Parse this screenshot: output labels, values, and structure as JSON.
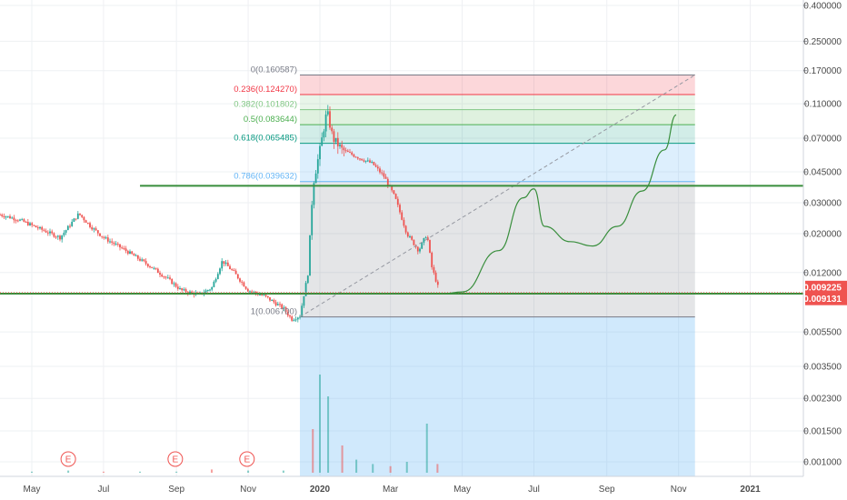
{
  "chart_data": {
    "type": "candlestick",
    "price_scale": "log",
    "grid": true,
    "y_ticks": [
      "0.400000",
      "0.250000",
      "0.170000",
      "0.110000",
      "0.070000",
      "0.045000",
      "0.030000",
      "0.020000",
      "0.012000",
      "0.009225",
      "0.009131",
      "0.005500",
      "0.003500",
      "0.002300",
      "0.001500",
      "0.001000"
    ],
    "y_tick_values": [
      0.4,
      0.25,
      0.17,
      0.11,
      0.07,
      0.045,
      0.03,
      0.02,
      0.012,
      0.0055,
      0.0035,
      0.0023,
      0.0015,
      0.001
    ],
    "x_ticks": [
      "May",
      "Jul",
      "Sep",
      "Nov",
      "2020",
      "Mar",
      "May",
      "Jul",
      "Sep",
      "Nov",
      "2021"
    ],
    "x_tick_dates": [
      "2019-05-01",
      "2019-07-01",
      "2019-09-01",
      "2019-11-01",
      "2020-01-01",
      "2020-03-01",
      "2020-05-01",
      "2020-07-01",
      "2020-09-01",
      "2020-11-01",
      "2021-01-01"
    ],
    "price_badges": [
      {
        "label": "0.009225",
        "value": 0.009225,
        "color": "#ef5350"
      },
      {
        "label": "0.009131",
        "value": 0.009131,
        "color": "#ef5350"
      }
    ],
    "earnings_markers": [
      {
        "label": "E",
        "date": "2019-06-01"
      },
      {
        "label": "E",
        "date": "2019-08-31"
      },
      {
        "label": "E",
        "date": "2019-10-31"
      }
    ],
    "fibonacci": {
      "start": {
        "date": "2019-12-15",
        "price": 0.0067
      },
      "end": {
        "date": "2020-11-15",
        "price": 0.160587
      },
      "levels": [
        {
          "label": "0(0.160587)",
          "ratio": 0,
          "price": 0.160587,
          "color": "#787b86"
        },
        {
          "label": "0.236(0.124270)",
          "ratio": 0.236,
          "price": 0.12427,
          "color": "#f23645"
        },
        {
          "label": "0.382(0.101802)",
          "ratio": 0.382,
          "price": 0.101802,
          "color": "#81c784"
        },
        {
          "label": "0.5(0.083644)",
          "ratio": 0.5,
          "price": 0.083644,
          "color": "#4caf50"
        },
        {
          "label": "0.618(0.065485)",
          "ratio": 0.618,
          "price": 0.065485,
          "color": "#089981"
        },
        {
          "label": "0.786(0.039632)",
          "ratio": 0.786,
          "price": 0.039632,
          "color": "#64b5f6"
        },
        {
          "label": "1(0.006700)",
          "ratio": 1,
          "price": 0.0067,
          "color": "#787b86"
        }
      ]
    },
    "horizontal_lines": [
      {
        "price": 0.0375,
        "color": "#388e3c",
        "from_date": "2019-08-01"
      },
      {
        "price": 0.0091,
        "color": "#388e3c"
      }
    ],
    "price_series": [
      [
        "2019-04-01",
        0.026
      ],
      [
        "2019-04-20",
        0.024
      ],
      [
        "2019-05-10",
        0.021
      ],
      [
        "2019-05-25",
        0.019
      ],
      [
        "2019-06-10",
        0.026
      ],
      [
        "2019-06-20",
        0.022
      ],
      [
        "2019-07-01",
        0.019
      ],
      [
        "2019-07-20",
        0.016
      ],
      [
        "2019-08-10",
        0.013
      ],
      [
        "2019-08-25",
        0.011
      ],
      [
        "2019-09-05",
        0.0095
      ],
      [
        "2019-09-20",
        0.009
      ],
      [
        "2019-10-01",
        0.0098
      ],
      [
        "2019-10-10",
        0.014
      ],
      [
        "2019-10-20",
        0.012
      ],
      [
        "2019-11-01",
        0.0095
      ],
      [
        "2019-11-15",
        0.0088
      ],
      [
        "2019-12-01",
        0.0075
      ],
      [
        "2019-12-08",
        0.0065
      ],
      [
        "2019-12-15",
        0.0068
      ],
      [
        "2019-12-22",
        0.012
      ],
      [
        "2019-12-26",
        0.038
      ],
      [
        "2020-01-01",
        0.06
      ],
      [
        "2020-01-07",
        0.1
      ],
      [
        "2020-01-12",
        0.07
      ],
      [
        "2020-01-20",
        0.06
      ],
      [
        "2020-02-01",
        0.055
      ],
      [
        "2020-02-15",
        0.05
      ],
      [
        "2020-02-25",
        0.042
      ],
      [
        "2020-03-05",
        0.032
      ],
      [
        "2020-03-15",
        0.02
      ],
      [
        "2020-03-25",
        0.016
      ],
      [
        "2020-04-01",
        0.02
      ],
      [
        "2020-04-05",
        0.013
      ],
      [
        "2020-04-12",
        0.0092
      ]
    ],
    "forecast_path": [
      [
        "2020-04-15",
        0.0091
      ],
      [
        "2020-05-01",
        0.0093
      ],
      [
        "2020-06-01",
        0.016
      ],
      [
        "2020-06-22",
        0.032
      ],
      [
        "2020-07-01",
        0.036
      ],
      [
        "2020-07-10",
        0.022
      ],
      [
        "2020-08-01",
        0.018
      ],
      [
        "2020-08-20",
        0.017
      ],
      [
        "2020-09-10",
        0.022
      ],
      [
        "2020-10-01",
        0.035
      ],
      [
        "2020-10-20",
        0.06
      ],
      [
        "2020-10-30",
        0.095
      ]
    ],
    "volume_series": [
      [
        "2019-04-01",
        1
      ],
      [
        "2019-05-01",
        1
      ],
      [
        "2019-06-01",
        2
      ],
      [
        "2019-07-01",
        1
      ],
      [
        "2019-08-01",
        1
      ],
      [
        "2019-09-01",
        1
      ],
      [
        "2019-10-01",
        3
      ],
      [
        "2019-11-01",
        2
      ],
      [
        "2019-12-01",
        2
      ],
      [
        "2019-12-26",
        40
      ],
      [
        "2020-01-01",
        90
      ],
      [
        "2020-01-08",
        70
      ],
      [
        "2020-01-20",
        25
      ],
      [
        "2020-02-01",
        12
      ],
      [
        "2020-02-15",
        8
      ],
      [
        "2020-03-01",
        6
      ],
      [
        "2020-03-15",
        10
      ],
      [
        "2020-04-01",
        45
      ],
      [
        "2020-04-10",
        8
      ]
    ]
  }
}
